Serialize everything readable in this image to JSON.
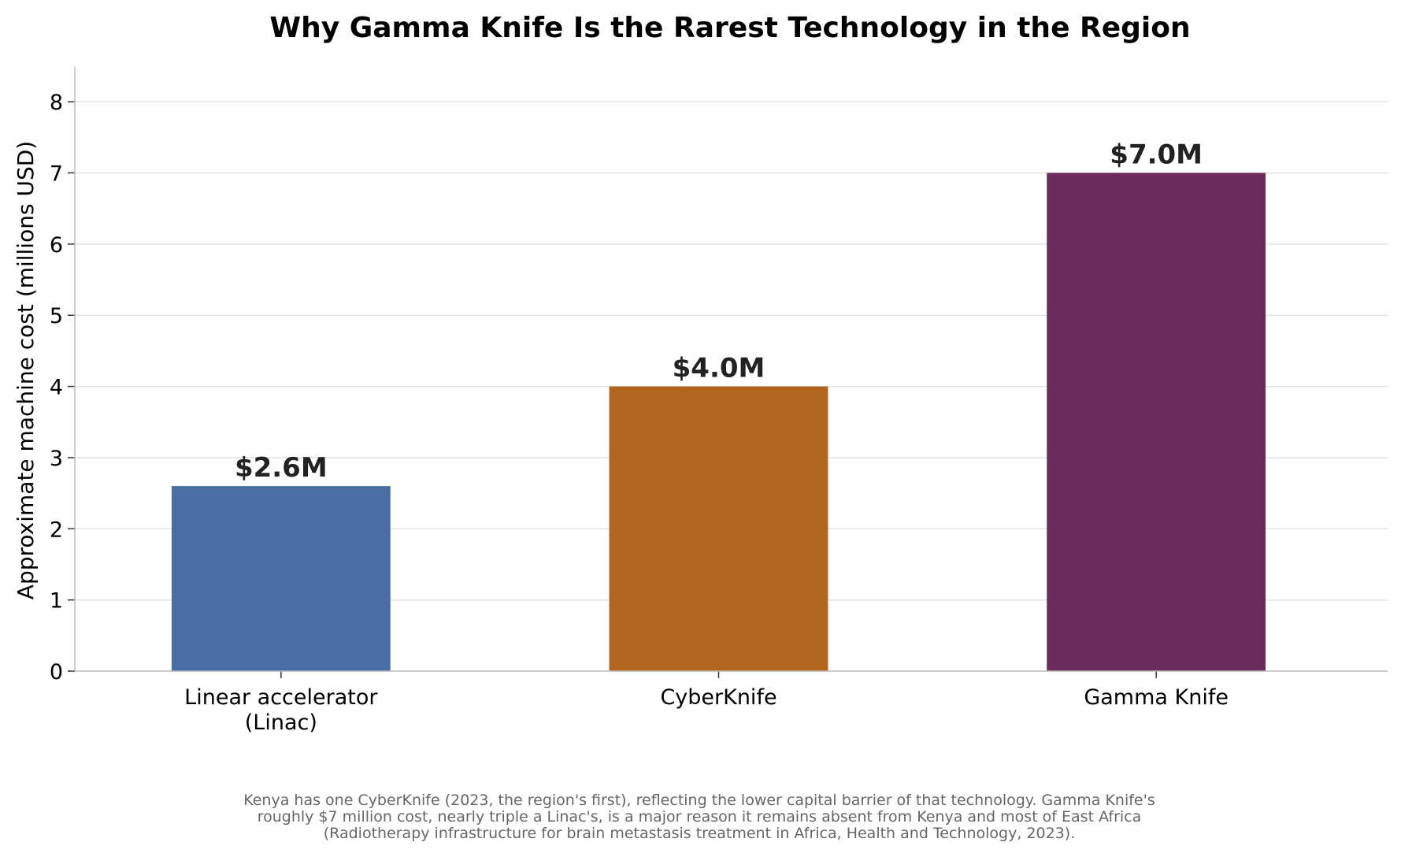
{
  "chart_data": {
    "type": "bar",
    "title": "Why Gamma Knife Is the Rarest Technology in the Region",
    "ylabel": "Approximate machine cost (millions USD)",
    "xlabel": "",
    "categories": [
      [
        "Linear accelerator",
        "(Linac)"
      ],
      [
        "CyberKnife"
      ],
      [
        "Gamma Knife"
      ]
    ],
    "values": [
      2.6,
      4.0,
      7.0
    ],
    "value_labels": [
      "$2.6M",
      "$4.0M",
      "$7.0M"
    ],
    "colors": [
      "#4a6ea3",
      "#b2651e",
      "#6a2c5a"
    ],
    "ylim": [
      0,
      8.5
    ],
    "yticks": [
      0,
      1,
      2,
      3,
      4,
      5,
      6,
      7,
      8
    ],
    "grid": "horizontal",
    "footnote": [
      "Kenya has one CyberKnife (2023, the region's first), reflecting the lower capital barrier of that technology. Gamma Knife's",
      "roughly $7 million cost, nearly triple a Linac's, is a major reason it remains absent from Kenya and most of East Africa",
      "(Radiotherapy infrastructure for brain metastasis treatment in Africa, Health and Technology, 2023)."
    ]
  }
}
